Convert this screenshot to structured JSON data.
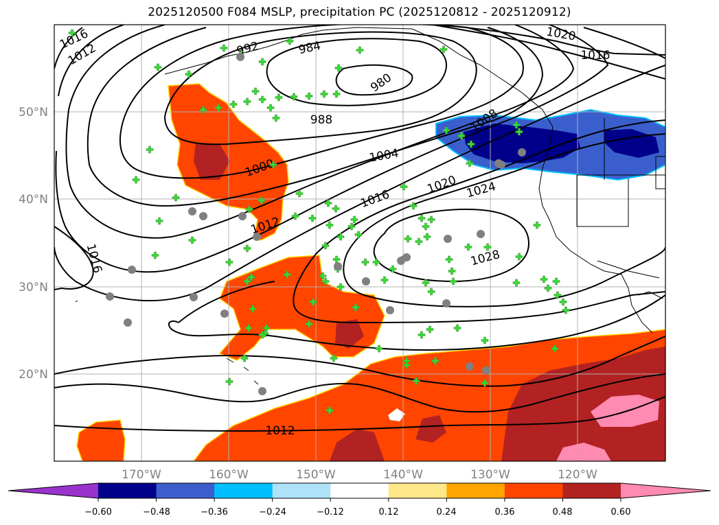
{
  "title": "2025120500 F084 MSLP, precipitation PC (2025120812 - 2025120912)",
  "map": {
    "projection": "PlateCarree",
    "extent_lon": [
      -180,
      -110
    ],
    "extent_lat": [
      10,
      60
    ],
    "latitude_labels": [
      "20°N",
      "30°N",
      "40°N",
      "50°N"
    ],
    "longitude_labels": [
      "170°W",
      "160°W",
      "150°W",
      "140°W",
      "130°W",
      "120°W"
    ],
    "gridlines": true,
    "isobar_labels": [
      "1016",
      "1012",
      "992",
      "984",
      "980",
      "988",
      "1004",
      "1000",
      "1008",
      "1012",
      "1016",
      "1020",
      "1024",
      "1028",
      "1020",
      "1016",
      "1016",
      "1012"
    ],
    "station_marker_colors": {
      "plus": "#33dd33",
      "circle": "#808080"
    }
  },
  "colorbar": {
    "tick_labels": [
      "−0.60",
      "−0.48",
      "−0.36",
      "−0.24",
      "−0.12",
      "0.12",
      "0.24",
      "0.36",
      "0.48",
      "0.60"
    ],
    "colors": [
      "#9933cc",
      "#00008b",
      "#3a5fcd",
      "#00bfff",
      "#aee3f9",
      "#ffffff",
      "#ffe88a",
      "#ffa500",
      "#ff4500",
      "#b22222",
      "#ff8ab2"
    ],
    "extend": "both"
  }
}
